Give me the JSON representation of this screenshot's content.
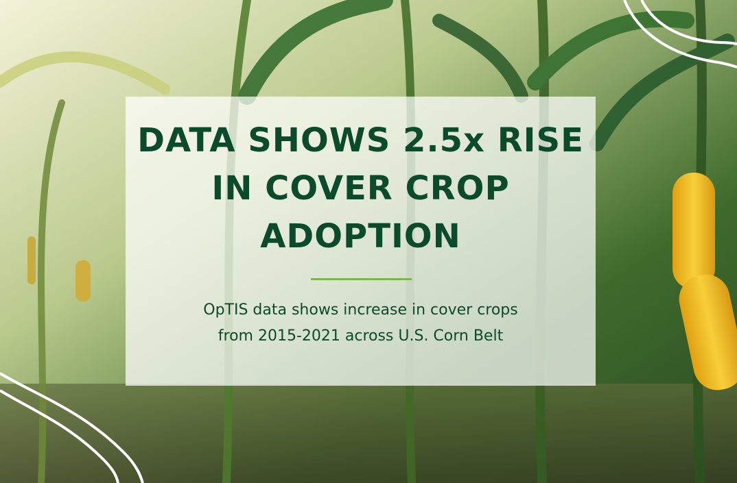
{
  "header": {
    "title_lines": [
      "DATA SHOWS 2.5x RISE",
      "IN COVER CROP",
      "ADOPTION"
    ],
    "subtitle_lines": [
      "OpTIS data shows increase in cover crops",
      "from 2015-2021 across U.S. Corn Belt"
    ]
  }
}
